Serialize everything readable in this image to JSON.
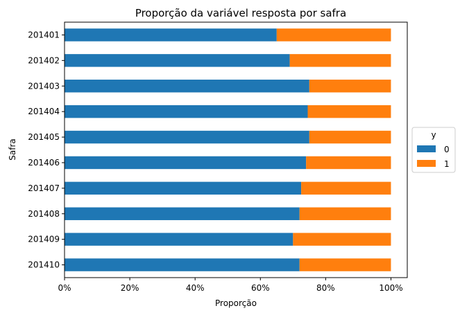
{
  "chart_data": {
    "type": "bar",
    "orientation": "horizontal",
    "stacked": true,
    "title": "Proporção da variável resposta por safra",
    "xlabel": "Proporção",
    "ylabel": "Safra",
    "xlim": [
      0,
      1.05
    ],
    "x_ticks": [
      {
        "value": 0,
        "label": "0%"
      },
      {
        "value": 0.2,
        "label": "20%"
      },
      {
        "value": 0.4,
        "label": "40%"
      },
      {
        "value": 0.6,
        "label": "60%"
      },
      {
        "value": 0.8,
        "label": "80%"
      },
      {
        "value": 1.0,
        "label": "100%"
      }
    ],
    "categories": [
      "201401",
      "201402",
      "201403",
      "201404",
      "201405",
      "201406",
      "201407",
      "201408",
      "201409",
      "201410"
    ],
    "series": [
      {
        "name": "0",
        "color": "#1f77b4",
        "values": [
          0.65,
          0.69,
          0.75,
          0.745,
          0.75,
          0.74,
          0.725,
          0.72,
          0.7,
          0.72
        ]
      },
      {
        "name": "1",
        "color": "#ff7f0e",
        "values": [
          0.35,
          0.31,
          0.25,
          0.255,
          0.25,
          0.26,
          0.275,
          0.28,
          0.3,
          0.28
        ]
      }
    ],
    "legend": {
      "title": "y",
      "position": "center-right-outside"
    },
    "grid": false
  }
}
